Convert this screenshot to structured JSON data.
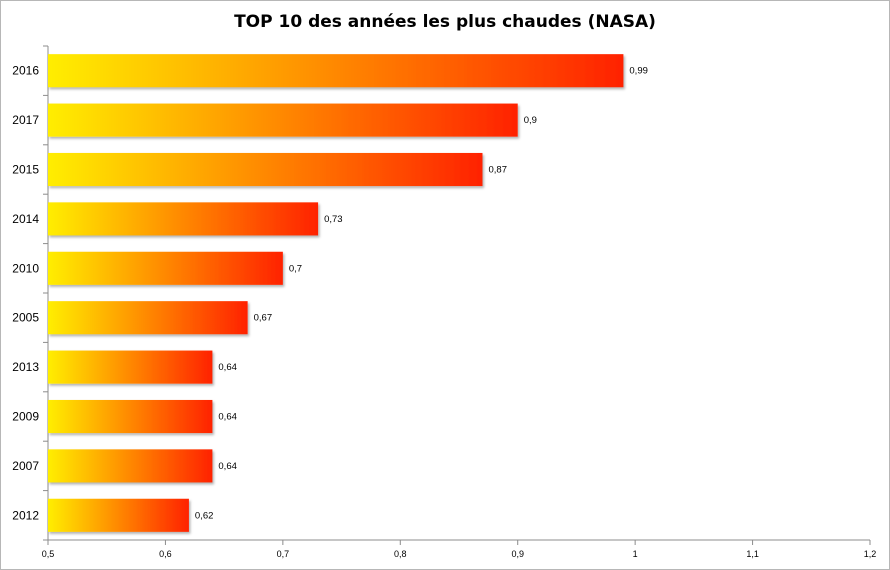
{
  "chart_data": {
    "type": "bar",
    "orientation": "horizontal",
    "title": "TOP 10 des années les plus chaudes (NASA)",
    "xlabel": "",
    "ylabel": "",
    "categories": [
      "2016",
      "2017",
      "2015",
      "2014",
      "2010",
      "2005",
      "2013",
      "2009",
      "2007",
      "2012"
    ],
    "values": [
      0.99,
      0.9,
      0.87,
      0.73,
      0.7,
      0.67,
      0.64,
      0.64,
      0.64,
      0.62
    ],
    "value_labels": [
      "0,99",
      "0,9",
      "0,87",
      "0,73",
      "0,7",
      "0,67",
      "0,64",
      "0,64",
      "0,64",
      "0,62"
    ],
    "xlim": [
      0.5,
      1.2
    ],
    "xticks": [
      0.5,
      0.6,
      0.7,
      0.8,
      0.9,
      1.0,
      1.1,
      1.2
    ],
    "xtick_labels": [
      "0,5",
      "0,6",
      "0,7",
      "0,8",
      "0,9",
      "1",
      "1,1",
      "1,2"
    ],
    "grid": false,
    "legend": "none",
    "colors": {
      "gradient_start": "#ffee00",
      "gradient_end": "#ff2200",
      "axis": "#8c8c8c"
    }
  }
}
